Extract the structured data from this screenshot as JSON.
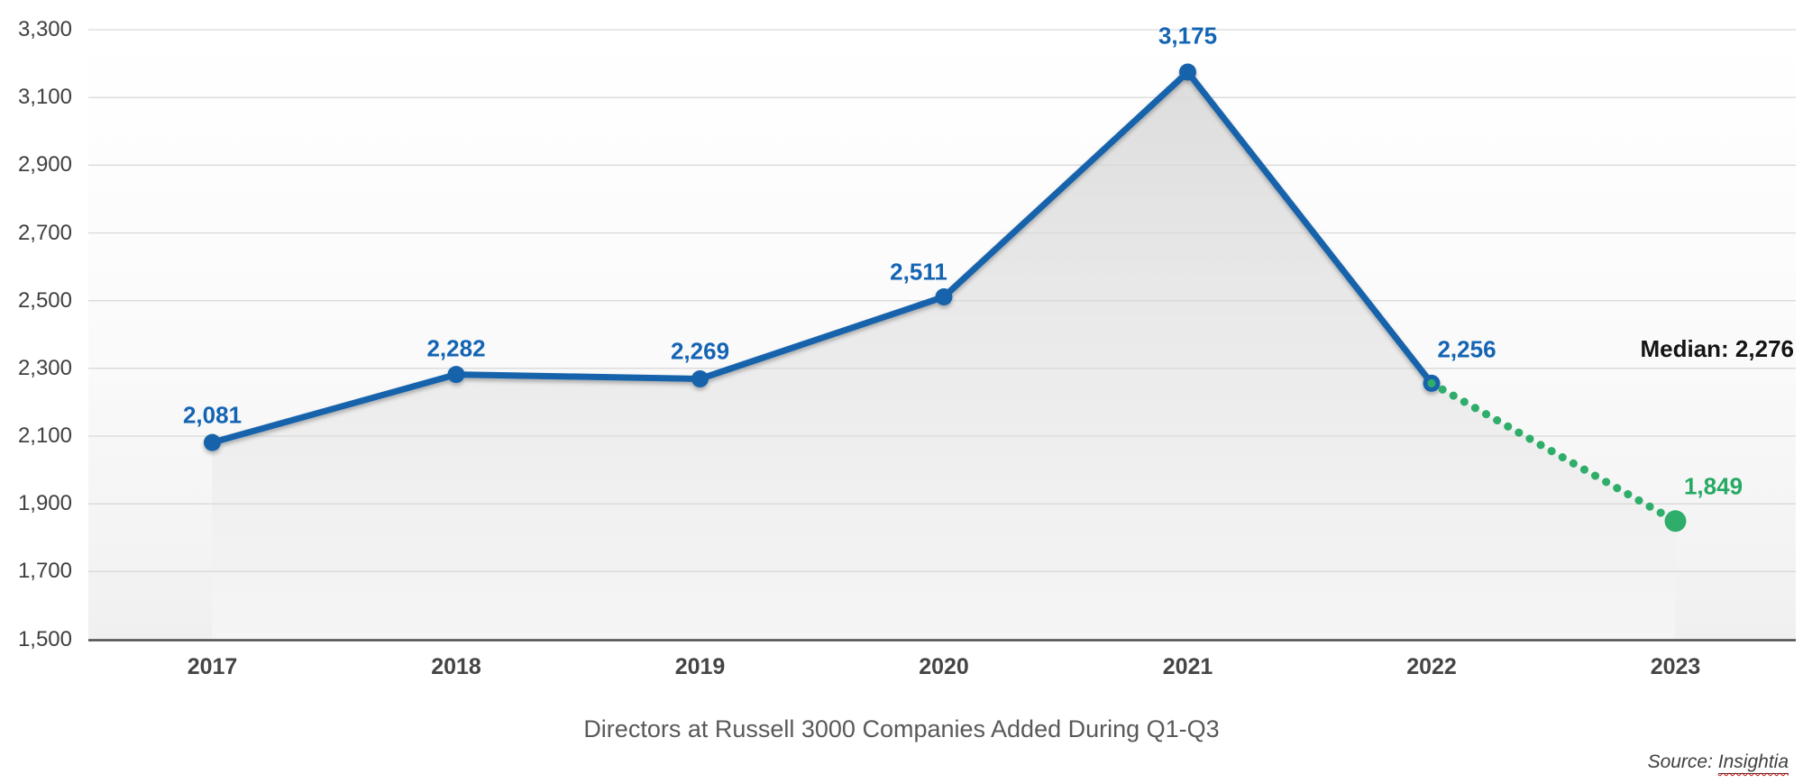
{
  "chart_data": {
    "type": "line",
    "title": "Directors at Russell 3000 Companies Added During Q1-Q3",
    "categories": [
      "2017",
      "2018",
      "2019",
      "2020",
      "2021",
      "2022",
      "2023"
    ],
    "values": [
      2081,
      2282,
      2269,
      2511,
      3175,
      2256,
      1849
    ],
    "value_labels": [
      "2,081",
      "2,282",
      "2,269",
      "2,511",
      "3,175",
      "2,256",
      "1,849"
    ],
    "projected_segment": [
      "2022",
      "2023"
    ],
    "median": {
      "value": 2276,
      "label": "Median: 2,276"
    },
    "y_ticks": [
      "3,300",
      "3,100",
      "2,900",
      "2,700",
      "2,500",
      "2,300",
      "2,100",
      "1,900",
      "1,700",
      "1,500"
    ],
    "ylim": [
      1500,
      3300
    ],
    "grid": true,
    "legend": "none",
    "source": {
      "prefix": "Source: ",
      "name": "Insightia"
    },
    "colors": {
      "series_line": "#1463AC",
      "series_label": "#1464B4",
      "projected_line": "#2FAD6A",
      "projected_label": "#27A964",
      "median_line": "#00C1CE",
      "median_label_text": "#141414",
      "gridline": "#D9D9D9",
      "axis_line": "#4D4D4D",
      "tick_text": "#404040",
      "title_text": "#595959"
    }
  }
}
